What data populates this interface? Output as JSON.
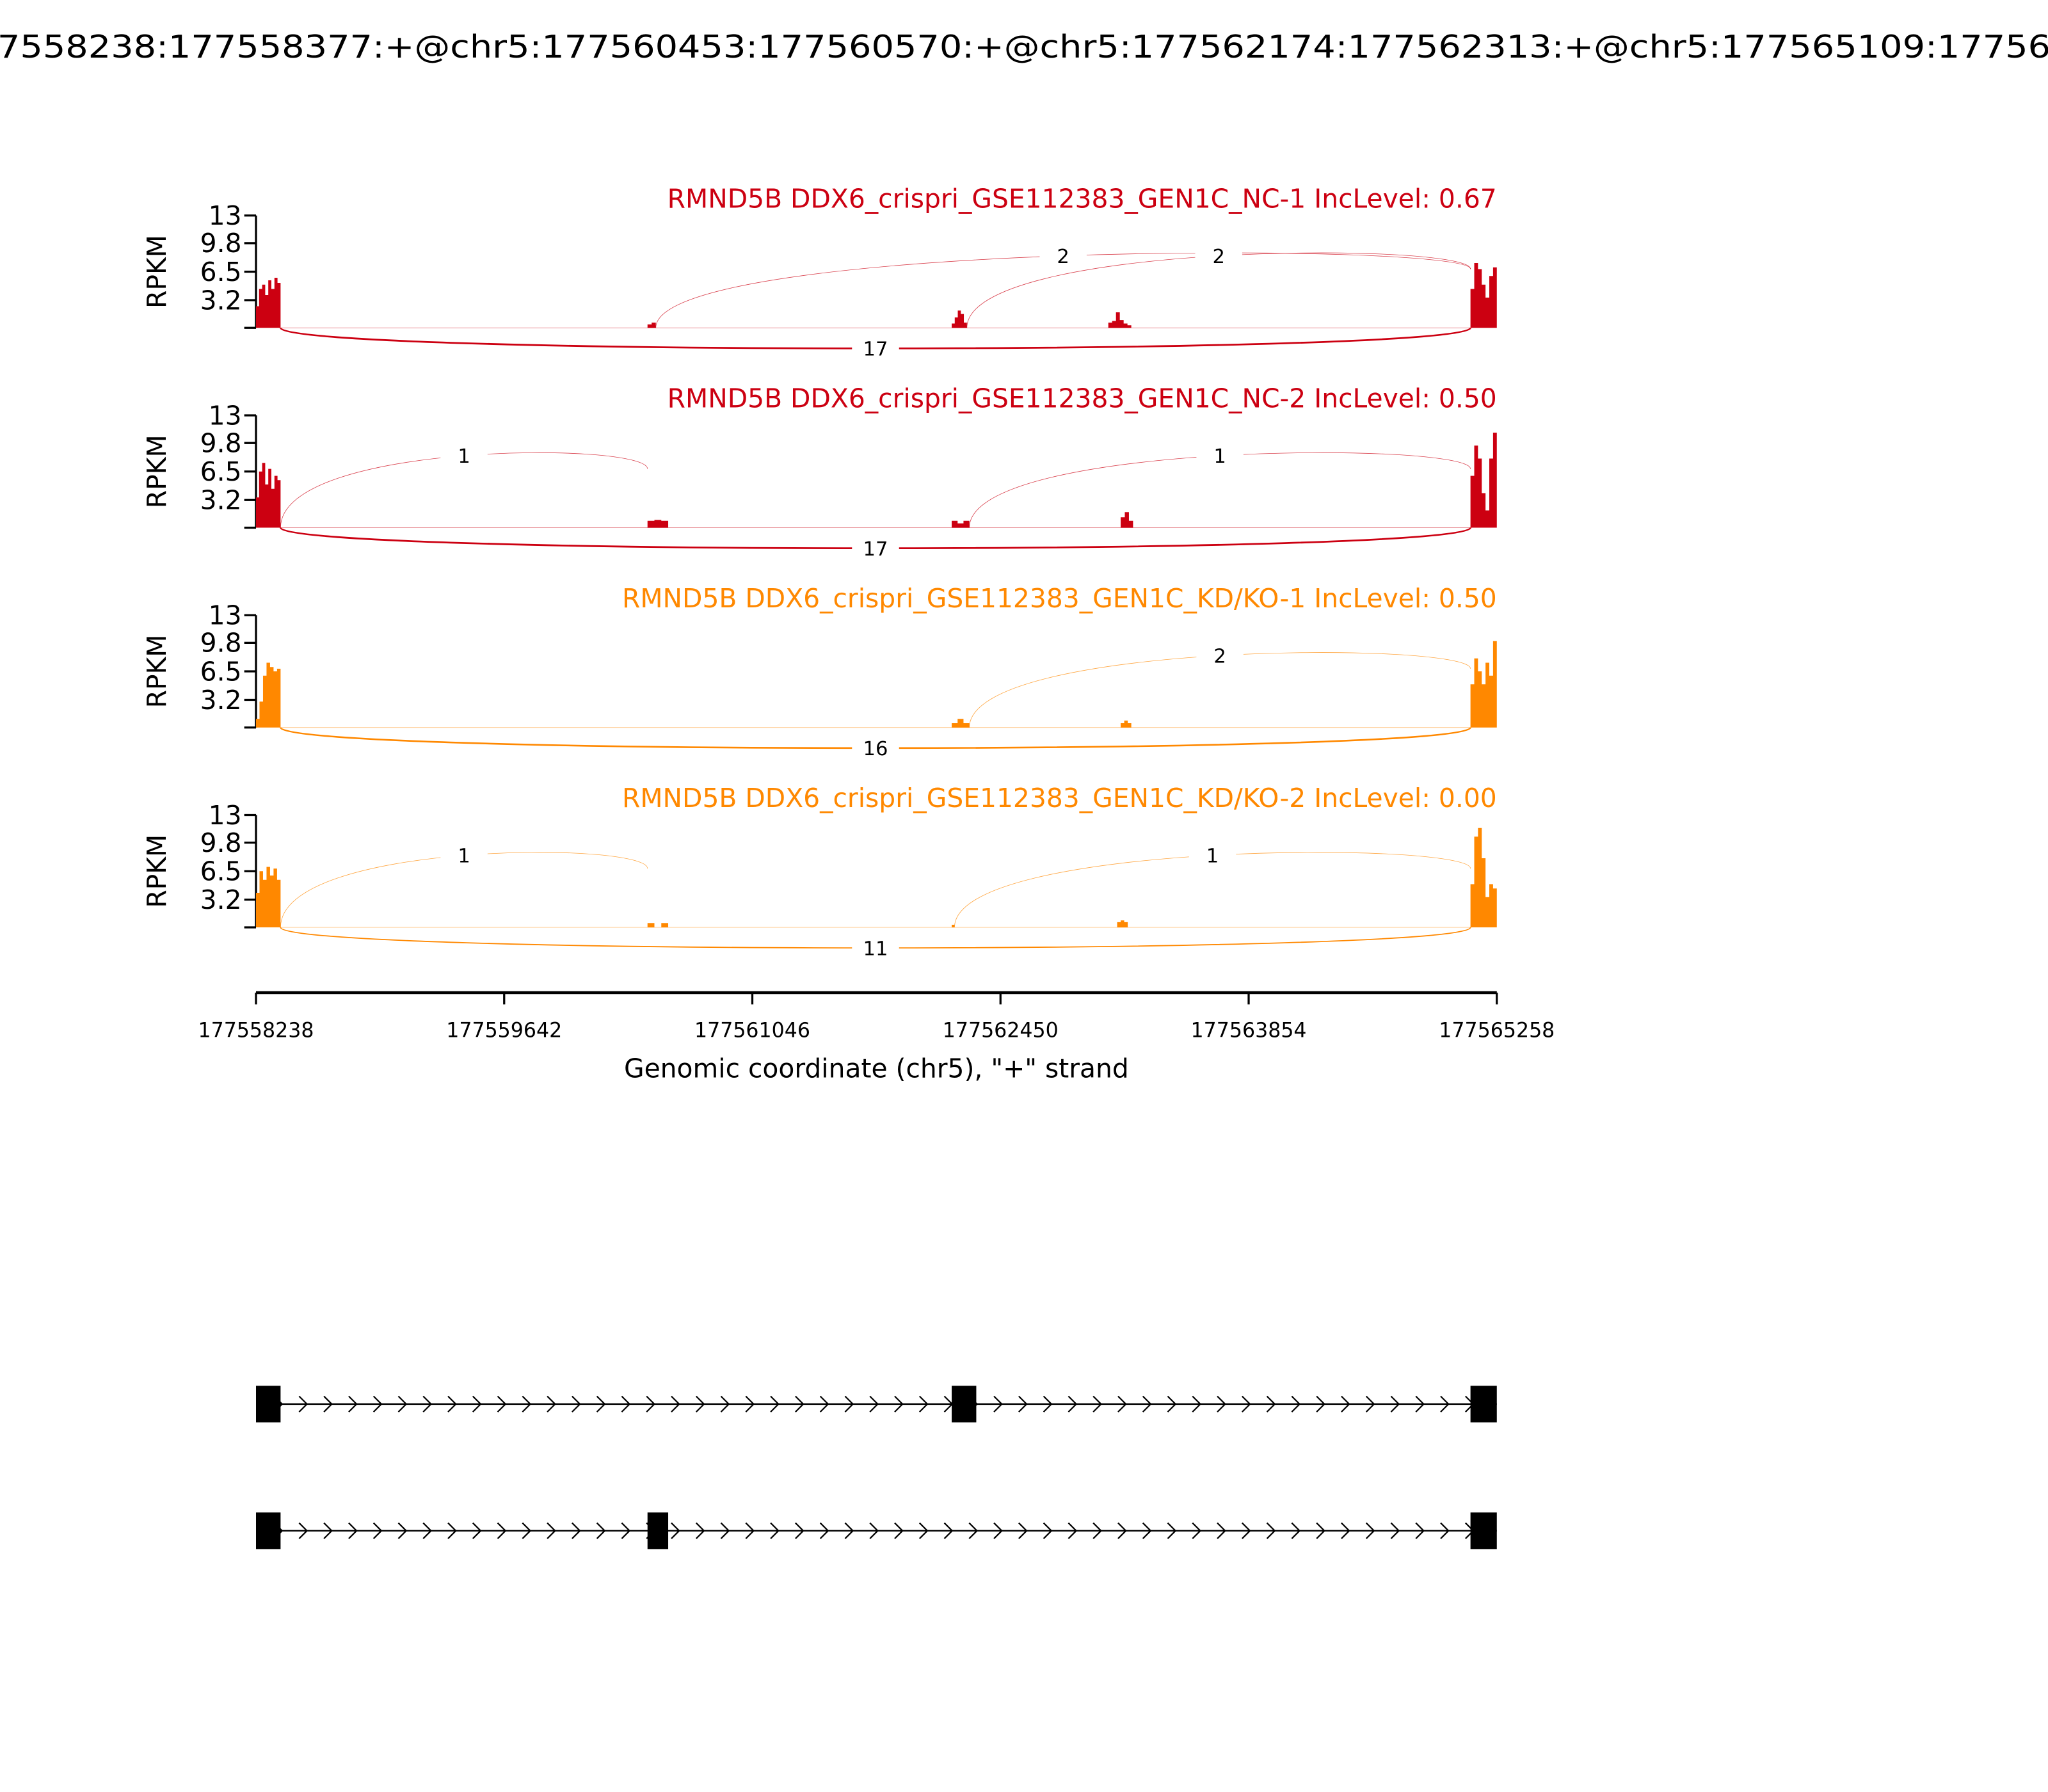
{
  "title": "7558238:177558377:+@chr5:177560453:177560570:+@chr5:177562174:177562313:+@chr5:177565109:17756",
  "colors": {
    "nc": "#CC0011",
    "kd": "#FF8800",
    "gene": "#000000"
  },
  "chart_data": {
    "type": "sashimi",
    "xlabel": "Genomic coordinate (chr5), \"+\" strand",
    "ylabel": "RPKM",
    "xlim": [
      177558238,
      177565258
    ],
    "xticks": [
      "177558238",
      "177559642",
      "177561046",
      "177562450",
      "177563854",
      "177565258"
    ],
    "ylim": [
      0,
      13
    ],
    "yticks": [
      "13",
      "9.8",
      "6.5",
      "3.2"
    ],
    "panels": [
      {
        "title": "RMND5B DDX6_crispri_GSE112383_GEN1C_NC-1 IncLevel: 0.67",
        "color": "#CC0011",
        "coverage": [
          {
            "start": 177558238,
            "end": 177558377,
            "values": [
              2.5,
              4.5,
              5.0,
              3.8,
              5.5,
              4.5,
              5.8,
              5.2
            ]
          },
          {
            "start": 177560453,
            "end": 177560500,
            "values": [
              0.4,
              0.6
            ]
          },
          {
            "start": 177562174,
            "end": 177562260,
            "values": [
              0.5,
              1.2,
              2.0,
              1.6,
              0.6
            ]
          },
          {
            "start": 177563060,
            "end": 177563190,
            "values": [
              0.6,
              0.8,
              1.8,
              0.9,
              0.5,
              0.3
            ]
          },
          {
            "start": 177565109,
            "end": 177565258,
            "values": [
              4.5,
              7.5,
              6.8,
              5.0,
              3.5,
              6.0,
              7.0
            ]
          }
        ],
        "junctions": [
          {
            "from": 177560500,
            "to": 177565109,
            "count": "2",
            "side": "above"
          },
          {
            "from": 177562260,
            "to": 177565109,
            "count": "2",
            "side": "above"
          },
          {
            "from": 177558377,
            "to": 177565109,
            "count": "17",
            "side": "below"
          }
        ]
      },
      {
        "title": "RMND5B DDX6_crispri_GSE112383_GEN1C_NC-2 IncLevel: 0.50",
        "color": "#CC0011",
        "coverage": [
          {
            "start": 177558238,
            "end": 177558377,
            "values": [
              3.5,
              6.5,
              7.5,
              5.0,
              6.8,
              4.5,
              6.0,
              5.5
            ]
          },
          {
            "start": 177560453,
            "end": 177560570,
            "values": [
              0.8,
              0.9,
              0.8
            ]
          },
          {
            "start": 177562174,
            "end": 177562274,
            "values": [
              0.8,
              0.5,
              0.8
            ]
          },
          {
            "start": 177563130,
            "end": 177563200,
            "values": [
              1.2,
              1.8,
              0.8
            ]
          },
          {
            "start": 177565109,
            "end": 177565258,
            "values": [
              6.0,
              9.5,
              8.0,
              4.0,
              2.0,
              8.0,
              11.0
            ]
          }
        ],
        "junctions": [
          {
            "from": 177558377,
            "to": 177560453,
            "count": "1",
            "side": "above"
          },
          {
            "from": 177562274,
            "to": 177565109,
            "count": "1",
            "side": "above"
          },
          {
            "from": 177558377,
            "to": 177565109,
            "count": "17",
            "side": "below"
          }
        ]
      },
      {
        "title": "RMND5B DDX6_crispri_GSE112383_GEN1C_KD/KO-1 IncLevel: 0.50",
        "color": "#FF8800",
        "coverage": [
          {
            "start": 177558238,
            "end": 177558377,
            "values": [
              1.0,
              3.0,
              6.0,
              7.5,
              7.0,
              6.5,
              6.8
            ]
          },
          {
            "start": 177562174,
            "end": 177562274,
            "values": [
              0.5,
              1.0,
              0.5
            ]
          },
          {
            "start": 177563130,
            "end": 177563190,
            "values": [
              0.5,
              0.8,
              0.5
            ]
          },
          {
            "start": 177565109,
            "end": 177565258,
            "values": [
              5.0,
              8.0,
              6.5,
              5.0,
              7.5,
              6.0,
              10.0
            ]
          }
        ],
        "junctions": [
          {
            "from": 177562274,
            "to": 177565109,
            "count": "2",
            "side": "above"
          },
          {
            "from": 177558377,
            "to": 177565109,
            "count": "16",
            "side": "below"
          }
        ]
      },
      {
        "title": "RMND5B DDX6_crispri_GSE112383_GEN1C_KD/KO-2 IncLevel: 0.00",
        "color": "#FF8800",
        "coverage": [
          {
            "start": 177558238,
            "end": 177558377,
            "values": [
              4.0,
              6.5,
              5.5,
              7.0,
              6.0,
              6.8,
              5.5
            ]
          },
          {
            "start": 177560453,
            "end": 177560570,
            "values": [
              0.5,
              0.0,
              0.5
            ]
          },
          {
            "start": 177562174,
            "end": 177562190,
            "values": [
              0.3
            ]
          },
          {
            "start": 177563110,
            "end": 177563170,
            "values": [
              0.6,
              0.8,
              0.6
            ]
          },
          {
            "start": 177565109,
            "end": 177565258,
            "values": [
              5.0,
              10.5,
              11.5,
              8.0,
              3.5,
              5.0,
              4.5
            ]
          }
        ],
        "junctions": [
          {
            "from": 177558377,
            "to": 177560453,
            "count": "1",
            "side": "above"
          },
          {
            "from": 177562190,
            "to": 177565109,
            "count": "1",
            "side": "above"
          },
          {
            "from": 177558377,
            "to": 177565109,
            "count": "11",
            "side": "below"
          }
        ]
      }
    ],
    "gene_models": [
      {
        "exons": [
          [
            177558238,
            177558377
          ],
          [
            177562174,
            177562313
          ],
          [
            177565109,
            177565258
          ]
        ]
      },
      {
        "exons": [
          [
            177558238,
            177558377
          ],
          [
            177560453,
            177560570
          ],
          [
            177565109,
            177565258
          ]
        ]
      }
    ]
  }
}
